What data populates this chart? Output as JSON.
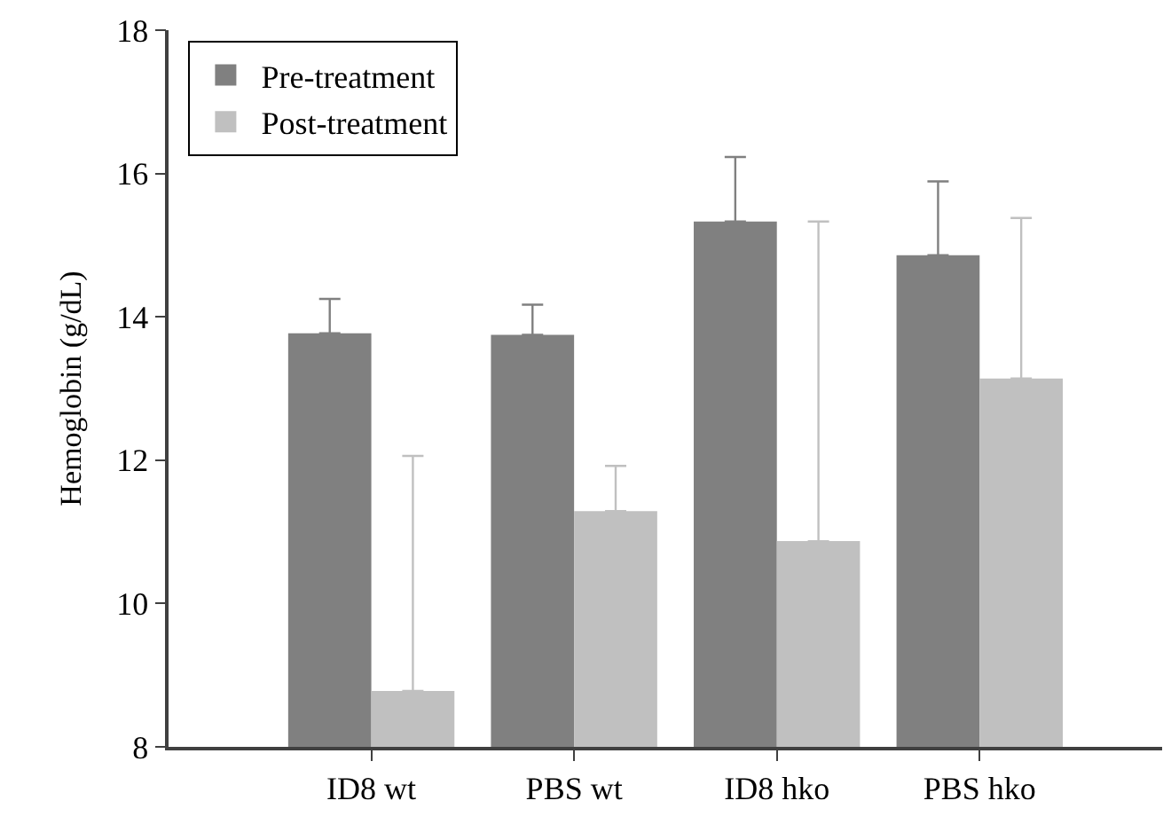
{
  "chart_data": {
    "type": "bar",
    "ylabel": "Hemoglobin (g/dL)",
    "categories": [
      "ID8 wt",
      "PBS wt",
      "ID8 hko",
      "PBS hko"
    ],
    "series": [
      {
        "name": "Pre-treatment",
        "color": "#808080",
        "values": [
          13.77,
          13.75,
          15.33,
          14.86
        ],
        "errors": [
          [
            13.77,
            14.25
          ],
          [
            13.75,
            14.17
          ],
          [
            15.33,
            16.23
          ],
          [
            14.86,
            15.89
          ]
        ]
      },
      {
        "name": "Post-treatment",
        "color": "#c0c0c0",
        "values": [
          8.78,
          11.29,
          10.87,
          13.14
        ],
        "errors": [
          [
            8.78,
            12.06
          ],
          [
            11.29,
            11.92
          ],
          [
            10.87,
            15.33
          ],
          [
            13.14,
            15.38
          ]
        ]
      }
    ],
    "ylim": [
      8,
      18
    ],
    "yticks": [
      8,
      10,
      12,
      14,
      16,
      18
    ],
    "legend": "top left"
  }
}
